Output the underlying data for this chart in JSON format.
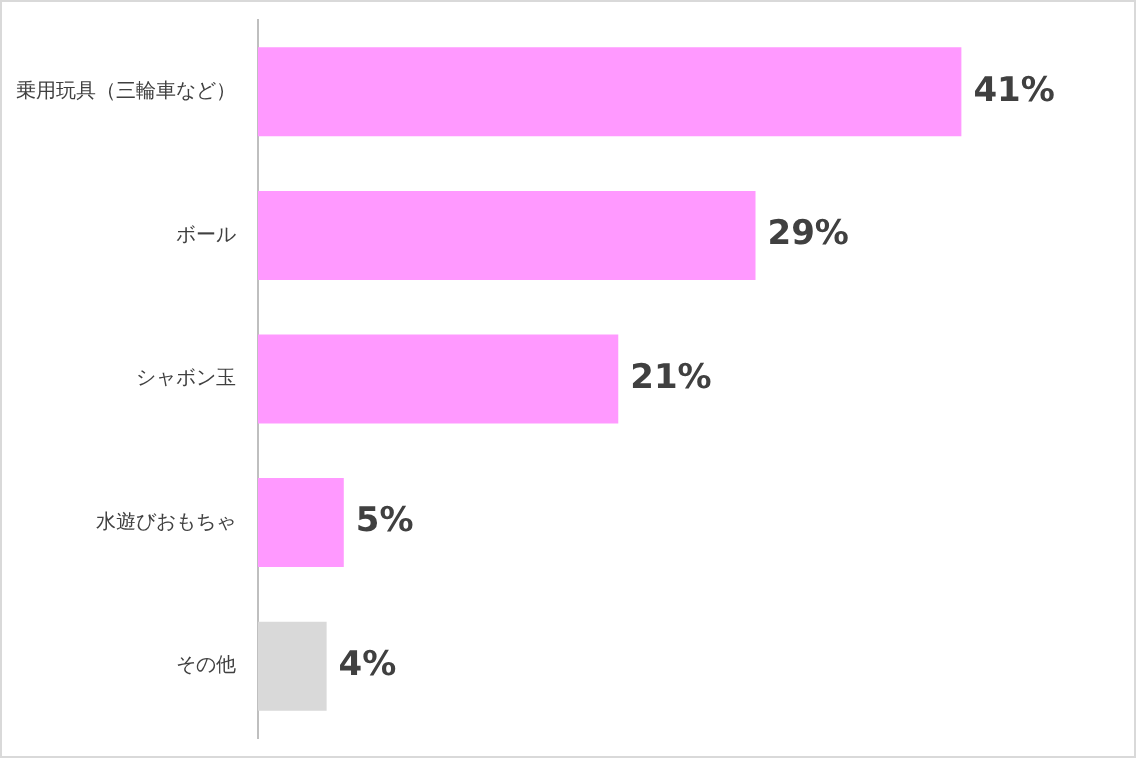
{
  "chart_data": {
    "type": "bar",
    "orientation": "horizontal",
    "categories": [
      "乗用玩具（三輪車など）",
      "ボール",
      "シャボン玉",
      "水遊びおもちゃ",
      "その他"
    ],
    "values": [
      41,
      29,
      21,
      5,
      4
    ],
    "colors": [
      "#ff99ff",
      "#ff99ff",
      "#ff99ff",
      "#ff99ff",
      "#d9d9d9"
    ],
    "value_labels": [
      "41%",
      "29%",
      "21%",
      "5%",
      "4%"
    ],
    "legend": false
  }
}
